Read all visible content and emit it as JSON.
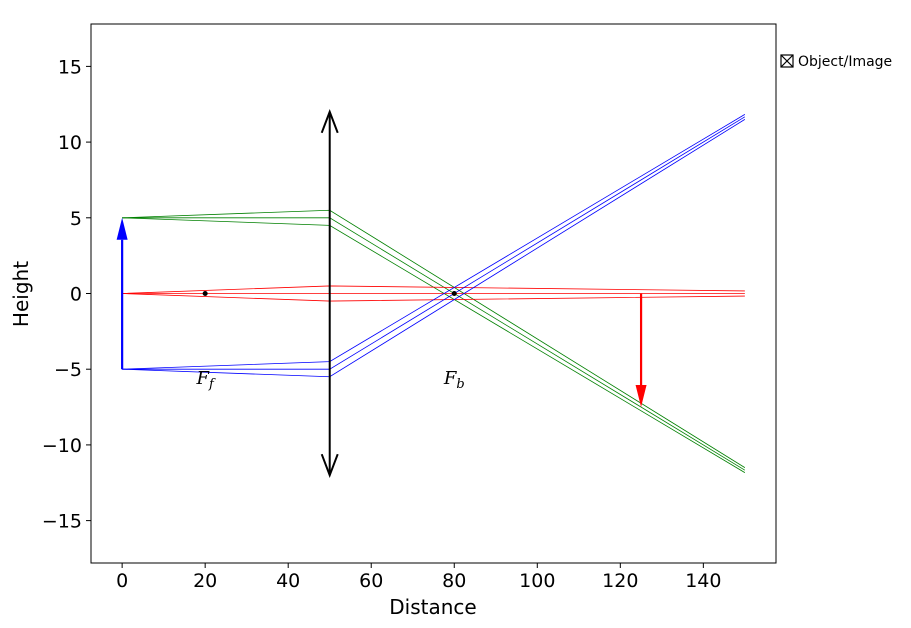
{
  "chart_data": {
    "type": "line",
    "xlabel": "Distance",
    "ylabel": "Height",
    "xlim": [
      -7.5,
      157.5
    ],
    "ylim": [
      -17.8,
      17.8
    ],
    "xticks": [
      0,
      20,
      40,
      60,
      80,
      100,
      120,
      140
    ],
    "yticks": [
      15,
      10,
      5,
      0,
      -5,
      -10,
      -15
    ],
    "xtick_labels": [
      "0",
      "20",
      "40",
      "60",
      "80",
      "100",
      "120",
      "140"
    ],
    "ytick_labels": [
      "15",
      "10",
      "5",
      "0",
      "−5",
      "−10",
      "−15"
    ],
    "grid": false,
    "legend": {
      "placement": "outside-right-top",
      "entries": [
        {
          "label": "Object/Image",
          "symbol": "boxed-x"
        }
      ]
    },
    "lens": {
      "x": 50,
      "y_min": -12,
      "y_max": 12,
      "color": "#000000"
    },
    "object": {
      "x": 0,
      "y_base": -5,
      "y_tip": 5,
      "color": "#0000ff"
    },
    "image": {
      "x": 125,
      "y_base": 0,
      "y_tip": -7.5,
      "color": "#ff0000"
    },
    "focal_points": [
      {
        "x": 20,
        "y": 0,
        "label": "F",
        "subscript": "f",
        "label_x": 20,
        "label_y": -5.5
      },
      {
        "x": 80,
        "y": 0,
        "label": "F",
        "subscript": "b",
        "label_x": 80,
        "label_y": -5.5
      }
    ],
    "series": [
      {
        "color": "#008000",
        "points": [
          [
            0,
            5
          ],
          [
            50,
            5.5
          ],
          [
            150,
            -11.5
          ]
        ]
      },
      {
        "color": "#008000",
        "points": [
          [
            0,
            5
          ],
          [
            50,
            5
          ],
          [
            150,
            -11.67
          ]
        ]
      },
      {
        "color": "#008000",
        "points": [
          [
            0,
            5
          ],
          [
            50,
            4.5
          ],
          [
            150,
            -11.83
          ]
        ]
      },
      {
        "color": "#ff0000",
        "points": [
          [
            0,
            0
          ],
          [
            50,
            0.5
          ],
          [
            150,
            0.17
          ]
        ]
      },
      {
        "color": "#ff0000",
        "points": [
          [
            0,
            0
          ],
          [
            50,
            0
          ],
          [
            150,
            0
          ]
        ]
      },
      {
        "color": "#ff0000",
        "points": [
          [
            0,
            0
          ],
          [
            50,
            -0.5
          ],
          [
            150,
            -0.17
          ]
        ]
      },
      {
        "color": "#0000ff",
        "points": [
          [
            0,
            -5
          ],
          [
            50,
            -4.5
          ],
          [
            150,
            11.83
          ]
        ]
      },
      {
        "color": "#0000ff",
        "points": [
          [
            0,
            -5
          ],
          [
            50,
            -5
          ],
          [
            150,
            11.67
          ]
        ]
      },
      {
        "color": "#0000ff",
        "points": [
          [
            0,
            -5
          ],
          [
            50,
            -5.5
          ],
          [
            150,
            11.5
          ]
        ]
      }
    ]
  }
}
